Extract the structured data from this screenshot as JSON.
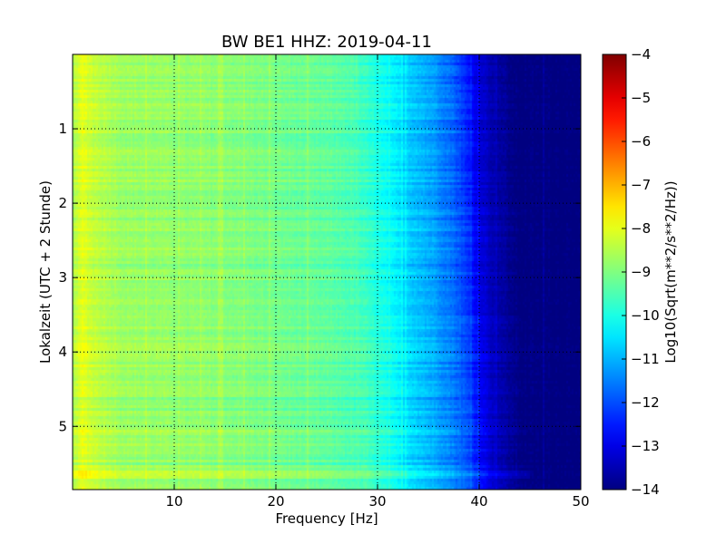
{
  "chart_data": {
    "type": "heatmap",
    "title": "BW BE1 HHZ: 2019-04-11",
    "xlabel": "Frequency [Hz]",
    "ylabel": "Lokalzeit (UTC + 2 Stunde)",
    "xlim": [
      0,
      50
    ],
    "ylim": [
      5.85,
      0
    ],
    "xticks": [
      10,
      20,
      30,
      40,
      50
    ],
    "yticks": [
      1,
      2,
      3,
      4,
      5
    ],
    "grid": true,
    "colormap": "jet",
    "colorbar": {
      "label": "Log10(Sqrt(m**2/s**2/Hz))",
      "min": -14,
      "max": -4,
      "ticks": [
        -4,
        -5,
        -6,
        -7,
        -8,
        -9,
        -10,
        -11,
        -12,
        -13,
        -14
      ]
    },
    "frequency_profile": {
      "frequency_hz": [
        0,
        1,
        2,
        5,
        10,
        15,
        20,
        25,
        28,
        30,
        32,
        34,
        36,
        38,
        39,
        40,
        41,
        42,
        43,
        44,
        45,
        50
      ],
      "log10_amplitude": [
        -8.6,
        -8.0,
        -8.3,
        -8.7,
        -8.8,
        -8.9,
        -9.1,
        -9.3,
        -9.5,
        -9.9,
        -10.4,
        -10.8,
        -11.2,
        -11.8,
        -12.3,
        -12.9,
        -13.3,
        -13.6,
        -13.8,
        -14.0,
        -14.0,
        -14.0
      ]
    }
  }
}
